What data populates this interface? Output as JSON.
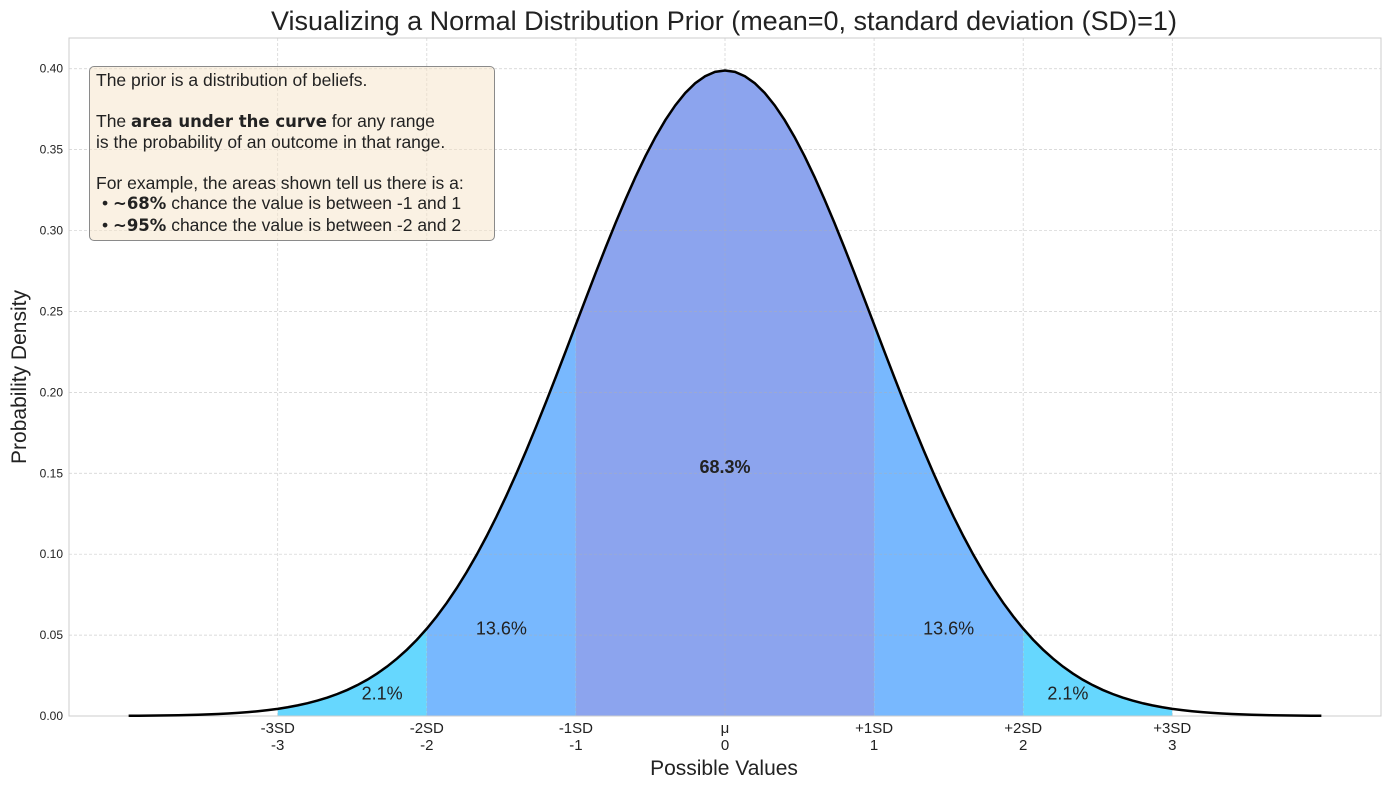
{
  "chart_data": {
    "type": "area",
    "title": "Visualizing a Normal Distribution Prior (mean=0, standard deviation (SD)=1)",
    "xlabel": "Possible Values",
    "ylabel": "Probability Density",
    "mean": 0,
    "sd": 1,
    "xlim": [
      -4.4,
      4.4
    ],
    "ylim": [
      0,
      0.419
    ],
    "curve_x_range": [
      -4,
      4
    ],
    "grid": true,
    "yticks": [
      "0.00",
      "0.05",
      "0.10",
      "0.15",
      "0.20",
      "0.25",
      "0.30",
      "0.35",
      "0.40"
    ],
    "ytick_values": [
      0,
      0.05,
      0.1,
      0.15,
      0.2,
      0.25,
      0.3,
      0.35,
      0.4
    ],
    "xticks": [
      {
        "value": -3,
        "sd_label": "-3SD",
        "label": "-3"
      },
      {
        "value": -2,
        "sd_label": "-2SD",
        "label": "-2"
      },
      {
        "value": -1,
        "sd_label": "-1SD",
        "label": "-1"
      },
      {
        "value": 0,
        "sd_label": "μ",
        "label": "0"
      },
      {
        "value": 1,
        "sd_label": "+1SD",
        "label": "1"
      },
      {
        "value": 2,
        "sd_label": "+2SD",
        "label": "2"
      },
      {
        "value": 3,
        "sd_label": "+3SD",
        "label": "3"
      }
    ],
    "regions": [
      {
        "from": -3,
        "to": -2,
        "color": "#66d7fe",
        "label": "2.1%",
        "label_x": -2.3,
        "label_y": 0.014
      },
      {
        "from": -2,
        "to": -1,
        "color": "#78b8fe",
        "label": "13.6%",
        "label_x": -1.5,
        "label_y": 0.054
      },
      {
        "from": -1,
        "to": 1,
        "color": "#8ca4ee",
        "label": "68.3%",
        "label_x": 0,
        "label_y": 0.154,
        "label_color": "#ffffff",
        "bold": true
      },
      {
        "from": 1,
        "to": 2,
        "color": "#78b8fe",
        "label": "13.6%",
        "label_x": 1.5,
        "label_y": 0.054
      },
      {
        "from": 2,
        "to": 3,
        "color": "#66d7fe",
        "label": "2.1%",
        "label_x": 2.3,
        "label_y": 0.014
      }
    ],
    "curve_color": "#000000"
  },
  "textbox": {
    "line1": "The prior is a distribution of beliefs.",
    "line2_pre": "The ",
    "line2_bold": "area under the curve",
    "line2_post": " for any range",
    "line3": "is the probability of an outcome in that range.",
    "line4": "For example, the areas shown tell us there is a:",
    "bullet1_bold": "~68%",
    "bullet1_text": " chance the value is between -1 and 1",
    "bullet2_bold": "~95%",
    "bullet2_text": " chance the value is between -2 and 2"
  }
}
